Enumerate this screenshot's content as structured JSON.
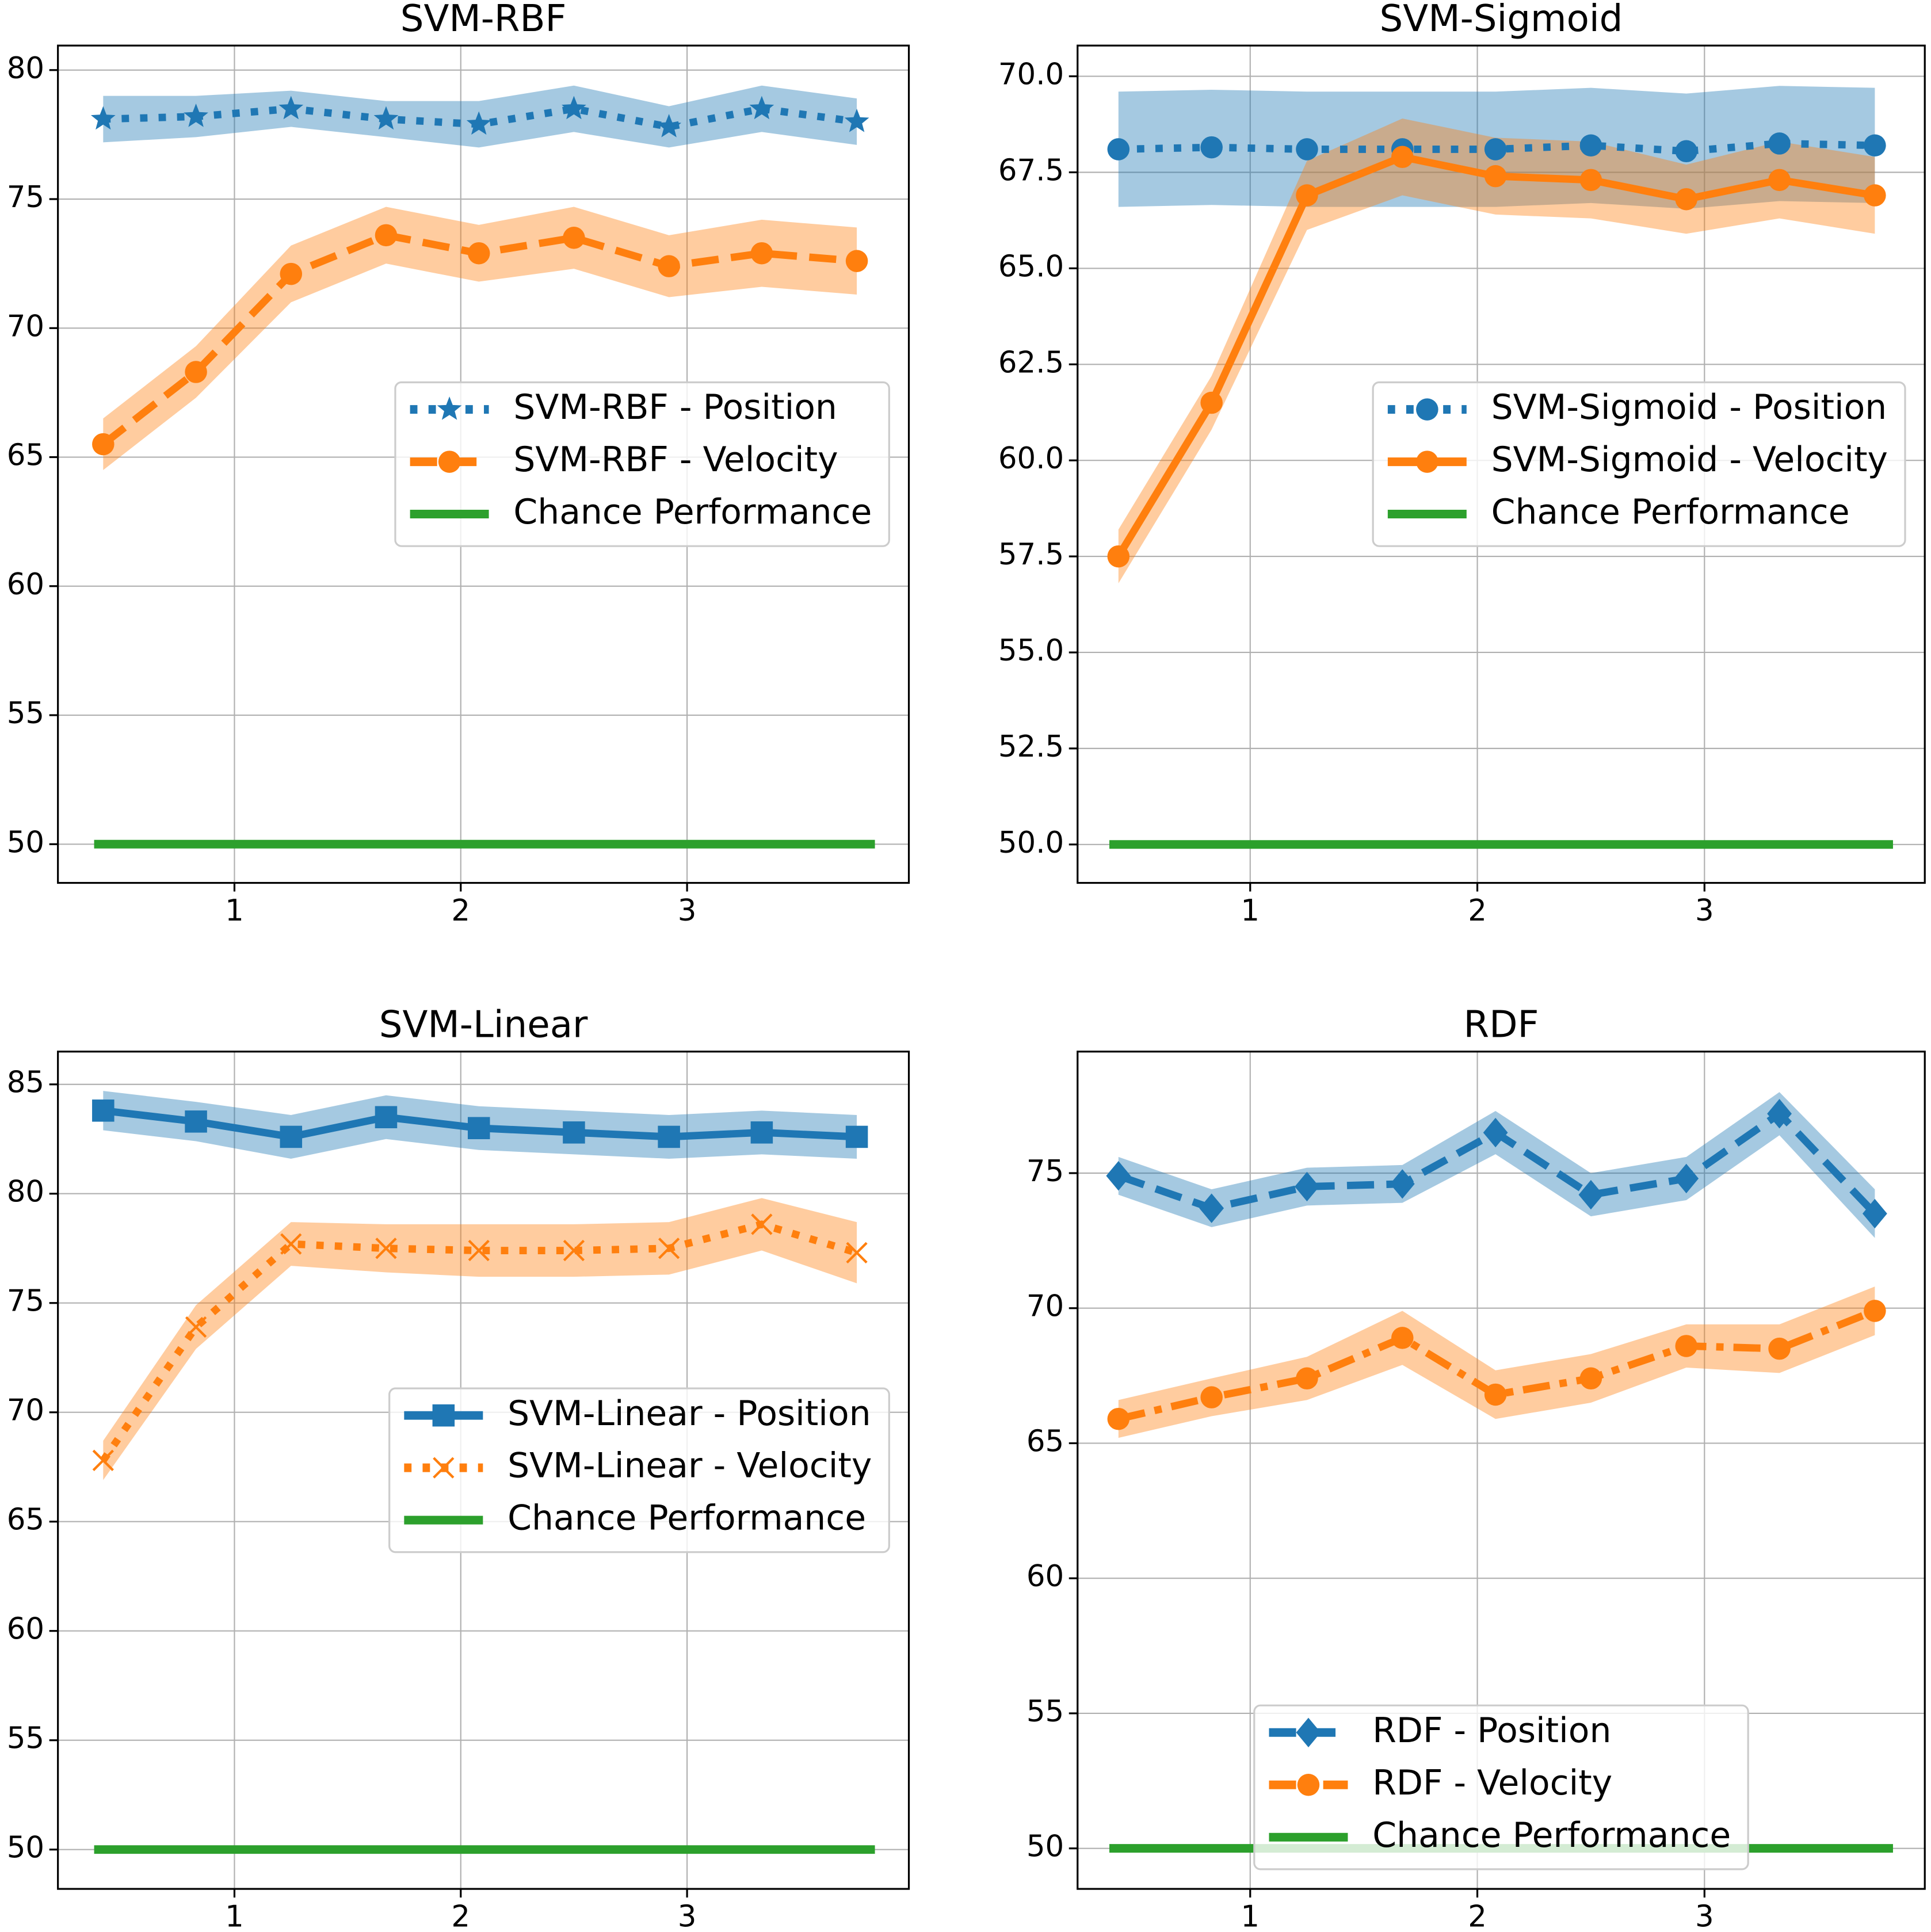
{
  "chart_data": [
    {
      "type": "line",
      "title": "SVM-RBF",
      "x": [
        0.42,
        0.83,
        1.25,
        1.67,
        2.08,
        2.5,
        2.92,
        3.33,
        3.75
      ],
      "xlim": [
        0.22,
        3.98
      ],
      "xticks": [
        1,
        2,
        3
      ],
      "ylim": [
        48.5,
        80.95
      ],
      "yticks": [
        50,
        55,
        60,
        65,
        70,
        75,
        80
      ],
      "grid": true,
      "legend": "center right",
      "series": [
        {
          "name": "SVM-RBF - Position",
          "color": "#1f77b4",
          "linestyle": "dotted",
          "marker": "star",
          "values": [
            78.1,
            78.2,
            78.5,
            78.1,
            77.9,
            78.5,
            77.8,
            78.5,
            78.0
          ],
          "band": [
            0.9,
            0.8,
            0.7,
            0.7,
            0.9,
            0.9,
            0.8,
            0.9,
            0.9
          ]
        },
        {
          "name": "SVM-RBF - Velocity",
          "color": "#ff7f0e",
          "linestyle": "dashed",
          "marker": "circle",
          "values": [
            65.5,
            68.3,
            72.1,
            73.6,
            72.9,
            73.5,
            72.4,
            72.9,
            72.6
          ],
          "band": [
            1.0,
            1.0,
            1.1,
            1.1,
            1.1,
            1.2,
            1.2,
            1.3,
            1.3
          ]
        },
        {
          "name": "Chance Performance",
          "color": "#2ca02c",
          "linestyle": "solid",
          "marker": "none",
          "x": [
            0.38,
            3.83
          ],
          "values": [
            50,
            50
          ]
        }
      ]
    },
    {
      "type": "line",
      "title": "SVM-Sigmoid",
      "x": [
        0.42,
        0.83,
        1.25,
        1.67,
        2.08,
        2.5,
        2.92,
        3.33,
        3.75
      ],
      "xlim": [
        0.24,
        3.97
      ],
      "xticks": [
        1,
        2,
        3
      ],
      "ylim": [
        49.0,
        70.8
      ],
      "yticks": [
        {
          "value": 50,
          "label": "50.0"
        },
        {
          "value": 52.5,
          "label": "52.5"
        },
        {
          "value": 55,
          "label": "55.0"
        },
        {
          "value": 57.5,
          "label": "57.5"
        },
        {
          "value": 60,
          "label": "60.0"
        },
        {
          "value": 62.5,
          "label": "62.5"
        },
        {
          "value": 65,
          "label": "65.0"
        },
        {
          "value": 67.5,
          "label": "67.5"
        },
        {
          "value": 70,
          "label": "70.0"
        }
      ],
      "grid": true,
      "legend": "center right",
      "series": [
        {
          "name": "SVM-Sigmoid - Position",
          "color": "#1f77b4",
          "linestyle": "dotted",
          "marker": "circle",
          "values": [
            68.1,
            68.15,
            68.1,
            68.1,
            68.1,
            68.2,
            68.05,
            68.25,
            68.2
          ],
          "band": [
            1.5,
            1.5,
            1.5,
            1.5,
            1.5,
            1.5,
            1.5,
            1.5,
            1.5
          ]
        },
        {
          "name": "SVM-Sigmoid - Velocity",
          "color": "#ff7f0e",
          "linestyle": "solid",
          "marker": "circle",
          "values": [
            57.5,
            61.5,
            66.9,
            67.9,
            67.4,
            67.3,
            66.8,
            67.3,
            66.9
          ],
          "band": [
            0.7,
            0.7,
            0.9,
            1.0,
            1.0,
            1.0,
            0.9,
            1.0,
            1.0
          ]
        },
        {
          "name": "Chance Performance",
          "color": "#2ca02c",
          "linestyle": "solid",
          "marker": "none",
          "x": [
            0.38,
            3.83
          ],
          "values": [
            50,
            50
          ]
        }
      ]
    },
    {
      "type": "line",
      "title": "SVM-Linear",
      "x": [
        0.42,
        0.83,
        1.25,
        1.67,
        2.08,
        2.5,
        2.92,
        3.33,
        3.75
      ],
      "xlim": [
        0.22,
        3.98
      ],
      "xticks": [
        1,
        2,
        3
      ],
      "ylim": [
        48.2,
        86.5
      ],
      "yticks": [
        50,
        55,
        60,
        65,
        70,
        75,
        80,
        85
      ],
      "grid": true,
      "legend": "center right",
      "series": [
        {
          "name": "SVM-Linear - Position",
          "color": "#1f77b4",
          "linestyle": "solid",
          "marker": "square",
          "values": [
            83.8,
            83.3,
            82.6,
            83.5,
            83.0,
            82.8,
            82.6,
            82.8,
            82.6
          ],
          "band": [
            0.9,
            0.9,
            1.0,
            1.0,
            1.0,
            1.0,
            1.0,
            1.0,
            1.0
          ]
        },
        {
          "name": "SVM-Linear - Velocity",
          "color": "#ff7f0e",
          "linestyle": "dotted",
          "marker": "x",
          "values": [
            67.8,
            73.9,
            77.7,
            77.5,
            77.4,
            77.4,
            77.5,
            78.6,
            77.3
          ],
          "band": [
            0.9,
            1.0,
            1.0,
            1.1,
            1.2,
            1.2,
            1.2,
            1.2,
            1.4
          ]
        },
        {
          "name": "Chance Performance",
          "color": "#2ca02c",
          "linestyle": "solid",
          "marker": "none",
          "x": [
            0.38,
            3.83
          ],
          "values": [
            50,
            50
          ]
        }
      ]
    },
    {
      "type": "line",
      "title": "RDF",
      "x": [
        0.42,
        0.83,
        1.25,
        1.67,
        2.08,
        2.5,
        2.92,
        3.33,
        3.75
      ],
      "xlim": [
        0.24,
        3.97
      ],
      "xticks": [
        1,
        2,
        3
      ],
      "ylim": [
        48.5,
        79.5
      ],
      "yticks": [
        50,
        55,
        60,
        65,
        70,
        75
      ],
      "grid": true,
      "legend": "lower center",
      "series": [
        {
          "name": "RDF - Position",
          "color": "#1f77b4",
          "linestyle": "dashed",
          "marker": "diamond",
          "values": [
            74.9,
            73.7,
            74.5,
            74.6,
            76.5,
            74.2,
            74.8,
            77.2,
            73.5
          ],
          "band": [
            0.7,
            0.7,
            0.7,
            0.7,
            0.8,
            0.8,
            0.8,
            0.8,
            0.9
          ]
        },
        {
          "name": "RDF - Velocity",
          "color": "#ff7f0e",
          "linestyle": "dashdot",
          "marker": "circle",
          "values": [
            65.9,
            66.7,
            67.4,
            68.9,
            66.8,
            67.4,
            68.6,
            68.5,
            69.9
          ],
          "band": [
            0.7,
            0.7,
            0.8,
            1.0,
            0.9,
            0.9,
            0.8,
            0.9,
            0.9
          ]
        },
        {
          "name": "Chance Performance",
          "color": "#2ca02c",
          "linestyle": "solid",
          "marker": "none",
          "x": [
            0.38,
            3.83
          ],
          "values": [
            50,
            50
          ]
        }
      ]
    }
  ]
}
